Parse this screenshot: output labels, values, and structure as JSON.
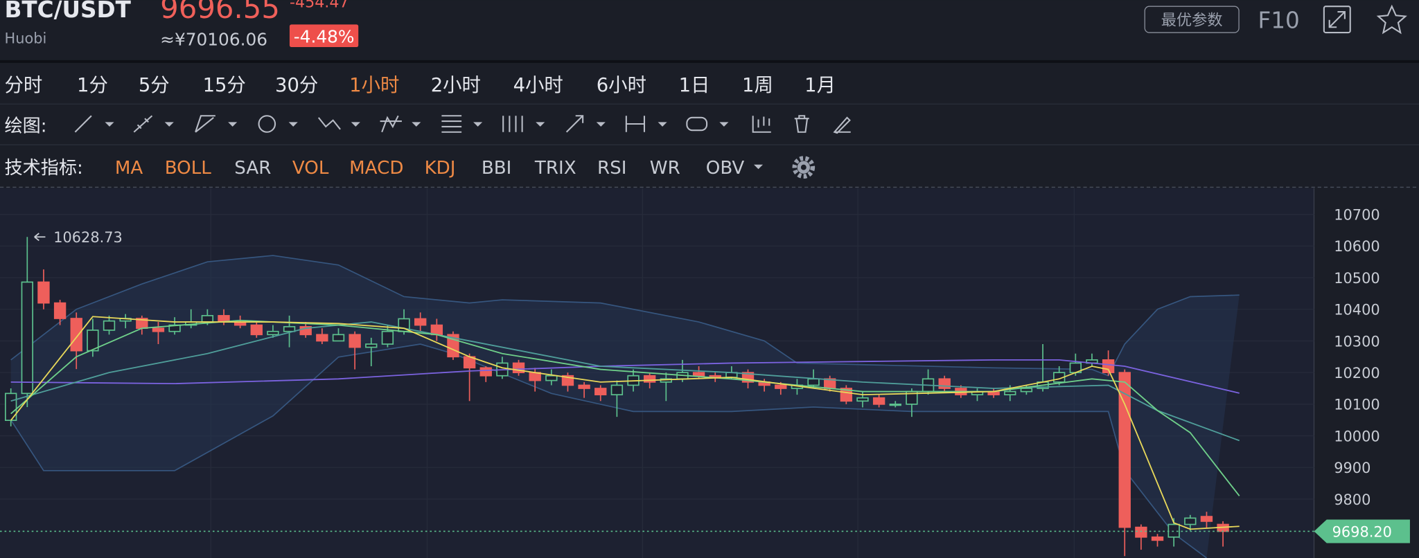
{
  "header": {
    "symbol": "BTC/USDT",
    "exchange": "Huobi",
    "price": "9696.55",
    "change": "-454.47",
    "cny": "≈¥70106.06",
    "change_pct": "-4.48%",
    "buttons": [
      "最优参数",
      "F10"
    ]
  },
  "timeframes": {
    "items": [
      "分时",
      "1分",
      "5分",
      "15分",
      "30分",
      "1小时",
      "2小时",
      "4小时",
      "6小时",
      "1日",
      "1周",
      "1月"
    ],
    "active": 5
  },
  "drawing": {
    "label": "绘图:"
  },
  "indicators": {
    "label": "技术指标:",
    "items": [
      {
        "label": "MA",
        "active": true
      },
      {
        "label": "BOLL",
        "active": true
      },
      {
        "label": "SAR",
        "active": false
      },
      {
        "label": "VOL",
        "active": true
      },
      {
        "label": "MACD",
        "active": true
      },
      {
        "label": "KDJ",
        "active": true
      },
      {
        "label": "BBI",
        "active": false
      },
      {
        "label": "TRIX",
        "active": false
      },
      {
        "label": "RSI",
        "active": false
      },
      {
        "label": "WR",
        "active": false
      },
      {
        "label": "OBV",
        "active": false
      }
    ]
  },
  "chart_data": {
    "type": "candlestick",
    "ylim": [
      9614,
      10783
    ],
    "yticks": [
      9800,
      9900,
      10000,
      10100,
      10200,
      10300,
      10400,
      10500,
      10600,
      10700
    ],
    "grid": true,
    "up_color": "#5cc08d",
    "down_color": "#ee5f5b",
    "open": [
      10049,
      10134,
      10486,
      10420,
      10371,
      10269,
      10334,
      10363,
      10371,
      10340,
      10330,
      10350,
      10360,
      10380,
      10360,
      10350,
      10320,
      10330,
      10345,
      10320,
      10300,
      10320,
      10280,
      10290,
      10330,
      10370,
      10350,
      10320,
      10250,
      10215,
      10190,
      10230,
      10200,
      10175,
      10190,
      10160,
      10150,
      10130,
      10160,
      10190,
      10170,
      10180,
      10200,
      10190,
      10185,
      10200,
      10170,
      10160,
      10150,
      10160,
      10180,
      10150,
      10110,
      10120,
      10100,
      10100,
      10140,
      10180,
      10150,
      10130,
      10140,
      10130,
      10140,
      10150,
      10170,
      10200,
      10230,
      10240,
      10200,
      9711,
      9680,
      9680,
      9720,
      9745,
      9720
    ],
    "high": [
      10150,
      10628.73,
      10526,
      10430,
      10390,
      10370,
      10380,
      10385,
      10380,
      10360,
      10375,
      10400,
      10400,
      10400,
      10380,
      10360,
      10350,
      10380,
      10360,
      10340,
      10340,
      10330,
      10310,
      10350,
      10400,
      10390,
      10370,
      10330,
      10260,
      10220,
      10250,
      10240,
      10215,
      10210,
      10200,
      10170,
      10160,
      10175,
      10210,
      10200,
      10200,
      10240,
      10220,
      10200,
      10220,
      10210,
      10180,
      10170,
      10180,
      10210,
      10190,
      10160,
      10140,
      10130,
      10110,
      10150,
      10210,
      10190,
      10160,
      10150,
      10150,
      10160,
      10160,
      10290,
      10220,
      10260,
      10260,
      10270,
      10210,
      9720,
      9690,
      9740,
      9750,
      9760,
      9730
    ],
    "low": [
      10030,
      10091,
      10400,
      10350,
      10211,
      10250,
      10320,
      10340,
      10320,
      10290,
      10320,
      10340,
      10350,
      10350,
      10340,
      10310,
      10310,
      10280,
      10310,
      10290,
      10300,
      10210,
      10220,
      10280,
      10320,
      10330,
      10300,
      10240,
      10110,
      10170,
      10180,
      10190,
      10140,
      10160,
      10140,
      10120,
      10110,
      10060,
      10140,
      10150,
      10110,
      10170,
      10180,
      10170,
      10180,
      10150,
      10140,
      10130,
      10130,
      10150,
      10140,
      10100,
      10090,
      10090,
      10090,
      10060,
      10130,
      10140,
      10120,
      10110,
      10120,
      10110,
      10130,
      10140,
      10160,
      10190,
      10220,
      10190,
      9620,
      9640,
      9650,
      9650,
      9700,
      9710,
      9650
    ],
    "close": [
      10134,
      10486,
      10420,
      10371,
      10269,
      10334,
      10363,
      10371,
      10340,
      10330,
      10350,
      10360,
      10380,
      10360,
      10350,
      10320,
      10330,
      10345,
      10320,
      10300,
      10320,
      10280,
      10290,
      10330,
      10370,
      10350,
      10320,
      10250,
      10215,
      10190,
      10230,
      10200,
      10175,
      10190,
      10160,
      10150,
      10130,
      10160,
      10190,
      10170,
      10180,
      10200,
      10190,
      10185,
      10200,
      10170,
      10160,
      10150,
      10160,
      10180,
      10150,
      10110,
      10120,
      10100,
      10100,
      10140,
      10180,
      10150,
      10130,
      10140,
      10130,
      10140,
      10150,
      10170,
      10200,
      10230,
      10240,
      10200,
      9711,
      9680,
      9670,
      9720,
      9740,
      9730,
      9698.2
    ],
    "overlays": [
      {
        "color": "#7b63e0",
        "x": [
          0,
          10,
          20,
          28,
          36,
          44,
          52,
          60,
          64,
          68,
          75
        ],
        "values": [
          10170,
          10165,
          10180,
          10205,
          10220,
          10230,
          10235,
          10240,
          10240,
          10220,
          10135
        ]
      },
      {
        "color": "#4f9e9a",
        "x": [
          0,
          6,
          12,
          18,
          22,
          28,
          36,
          44,
          52,
          60,
          67,
          70,
          75
        ],
        "values": [
          10110,
          10200,
          10260,
          10340,
          10360,
          10300,
          10220,
          10200,
          10170,
          10150,
          10160,
          10080,
          9985
        ]
      },
      {
        "color": "#6fd08a",
        "x": [
          0,
          4,
          8,
          14,
          20,
          26,
          30,
          36,
          44,
          52,
          60,
          66,
          68,
          70,
          72,
          75
        ],
        "values": [
          10070,
          10250,
          10340,
          10365,
          10350,
          10320,
          10260,
          10210,
          10180,
          10140,
          10140,
          10180,
          10170,
          10080,
          10010,
          9810
        ]
      },
      {
        "color": "#e8d85a",
        "x": [
          0,
          5,
          10,
          16,
          20,
          24,
          28,
          30,
          36,
          44,
          52,
          60,
          64,
          66,
          67,
          68,
          70,
          71,
          72,
          75
        ],
        "values": [
          10049,
          10377,
          10360,
          10360,
          10355,
          10340,
          10250,
          10215,
          10170,
          10185,
          10130,
          10140,
          10180,
          10220,
          10210,
          10100,
          9850,
          9725,
          9705,
          9714
        ]
      }
    ],
    "bands": {
      "color": "#36567f",
      "fill": "#253550",
      "upper": {
        "x": [
          0,
          4,
          8,
          12,
          16,
          20,
          24,
          28,
          30,
          36,
          42,
          46,
          48,
          52,
          60,
          66,
          67,
          68,
          70,
          72,
          75
        ],
        "values": [
          10240,
          10400,
          10480,
          10550,
          10570,
          10540,
          10440,
          10420,
          10430,
          10420,
          10360,
          10300,
          10230,
          10225,
          10215,
          10210,
          10190,
          10290,
          10400,
          10440,
          10445
        ]
      },
      "lower": {
        "x": [
          0,
          2,
          10,
          16,
          20,
          25,
          27,
          33,
          38,
          44,
          49,
          55,
          60,
          67,
          68,
          71,
          73
        ],
        "values": [
          10050,
          9890,
          9890,
          10063,
          10249,
          10290,
          10260,
          10134,
          10077,
          10077,
          10091,
          10077,
          10077,
          10077,
          9891,
          9691,
          9614
        ]
      }
    },
    "max_label": 10628.73,
    "last_price": {
      "value": 9698.2,
      "label": "9698.20",
      "color": "#5cc08d"
    }
  }
}
